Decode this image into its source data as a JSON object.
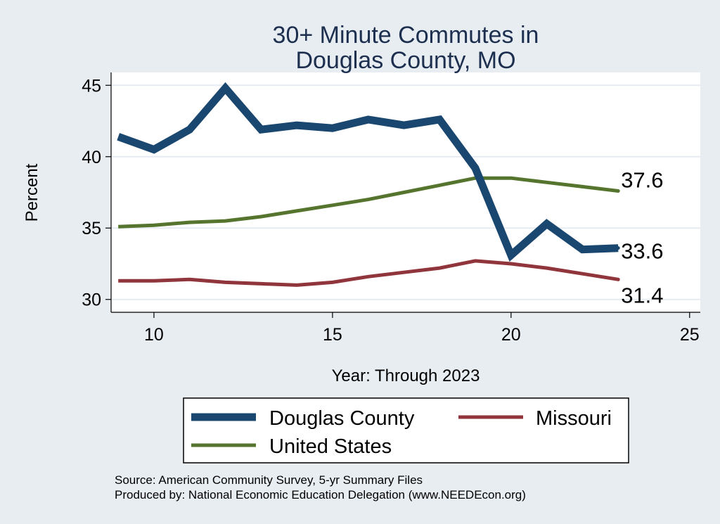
{
  "chart_data": {
    "type": "line",
    "title": [
      "30+ Minute Commutes in",
      "Douglas County, MO"
    ],
    "xlabel": "Year: Through 2023",
    "ylabel": "Percent",
    "xlim": [
      8.8,
      25.3
    ],
    "ylim": [
      29.1,
      45.9
    ],
    "xticks": [
      "10",
      "15",
      "20",
      "25"
    ],
    "yticks": [
      "30",
      "35",
      "40",
      "45"
    ],
    "grid": true,
    "series": [
      {
        "name": "Douglas County",
        "color": "#1a476f",
        "x": [
          9,
          10,
          11,
          12,
          13,
          14,
          15,
          16,
          17,
          18,
          19,
          20,
          21,
          22,
          23
        ],
        "values": [
          41.4,
          40.5,
          41.9,
          44.8,
          41.9,
          42.2,
          42.0,
          42.6,
          42.2,
          42.6,
          39.2,
          33.1,
          35.3,
          33.5,
          33.6
        ],
        "end_label": "33.6"
      },
      {
        "name": "Missouri",
        "color": "#90353b",
        "x": [
          9,
          10,
          11,
          12,
          13,
          14,
          15,
          16,
          17,
          18,
          19,
          20,
          21,
          22,
          23
        ],
        "values": [
          31.3,
          31.3,
          31.4,
          31.2,
          31.1,
          31.0,
          31.2,
          31.6,
          31.9,
          32.2,
          32.7,
          32.5,
          32.2,
          31.8,
          31.4
        ],
        "end_label": "31.4"
      },
      {
        "name": "United States",
        "color": "#55752f",
        "x": [
          9,
          10,
          11,
          12,
          13,
          14,
          15,
          16,
          17,
          18,
          19,
          20,
          21,
          22,
          23
        ],
        "values": [
          35.1,
          35.2,
          35.4,
          35.5,
          35.8,
          36.2,
          36.6,
          37.0,
          37.5,
          38.0,
          38.5,
          38.5,
          38.2,
          37.9,
          37.6
        ],
        "end_label": "37.6"
      }
    ],
    "legend": {
      "position": "bottom",
      "entries": [
        "Douglas County",
        "Missouri",
        "United States"
      ]
    },
    "notes": [
      "Source: American Community Survey, 5-yr Summary Files",
      "Produced by: National Economic Education Delegation (www.NEEDEcon.org)"
    ]
  }
}
